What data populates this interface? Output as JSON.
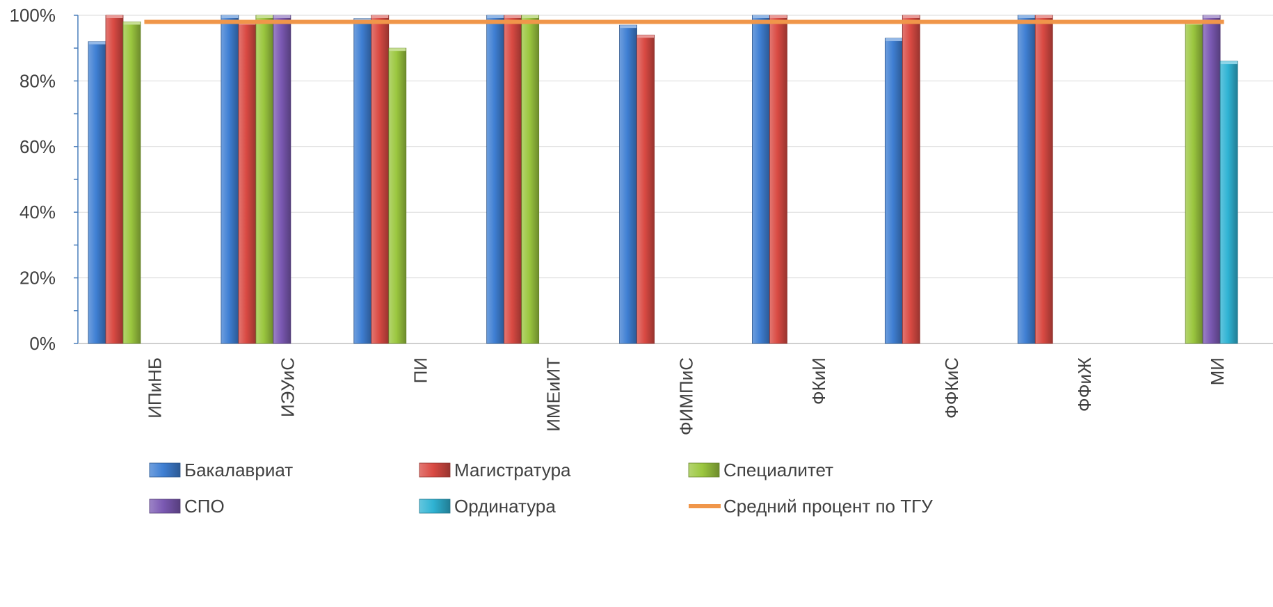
{
  "chart_data": {
    "type": "bar",
    "title": "",
    "xlabel": "",
    "ylabel": "",
    "ylim": [
      0,
      100
    ],
    "y_ticks": [
      "0%",
      "20%",
      "40%",
      "60%",
      "80%",
      "100%"
    ],
    "grid": "horizontal",
    "legend_position": "bottom",
    "categories": [
      "ИПиНБ",
      "ИЭУиС",
      "ПИ",
      "ИМЕиИТ",
      "ФИМПиС",
      "ФКиИ",
      "ФФКиС",
      "ФФиЖ",
      "МИ"
    ],
    "series": [
      {
        "name": "Бакалавриат",
        "color": "#3f7fd3",
        "values": [
          92,
          100,
          99,
          100,
          97,
          100,
          93,
          100,
          null
        ]
      },
      {
        "name": "Магистратура",
        "color": "#d94a43",
        "values": [
          100,
          98,
          100,
          100,
          94,
          100,
          100,
          100,
          null
        ]
      },
      {
        "name": "Специалитет",
        "color": "#9bc73f",
        "values": [
          98,
          100,
          90,
          100,
          null,
          null,
          null,
          null,
          98
        ]
      },
      {
        "name": "СПО",
        "color": "#7b59b3",
        "values": [
          null,
          100,
          null,
          null,
          null,
          null,
          null,
          null,
          100
        ]
      },
      {
        "name": "Ординатура",
        "color": "#2fb3d3",
        "values": [
          null,
          null,
          null,
          null,
          null,
          null,
          null,
          null,
          86
        ]
      }
    ],
    "line_series": {
      "name": "Средний процент по ТГУ",
      "color": "#f0964a",
      "value": 98
    }
  }
}
